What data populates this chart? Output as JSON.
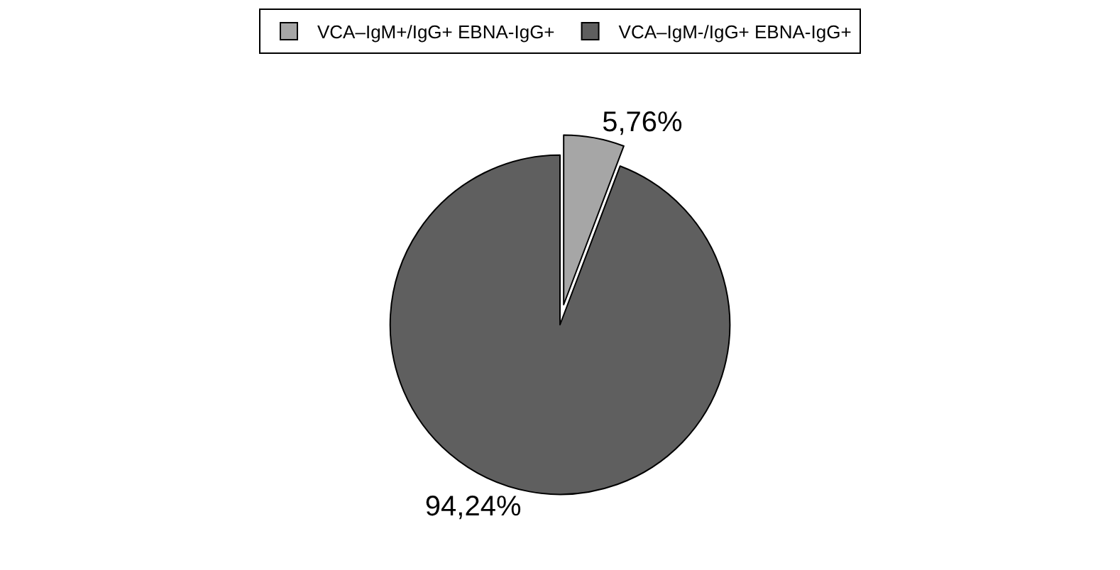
{
  "chart_data": {
    "type": "pie",
    "categories": [
      "VCA–IgM+/IgG+ EBNA-IgG+",
      "VCA–IgM-/IgG+ EBNA-IgG+"
    ],
    "values": [
      5.76,
      94.24
    ],
    "colors": [
      "#a6a6a6",
      "#5f5f5f"
    ],
    "value_labels": [
      "5,76%",
      "94,24%"
    ],
    "legend": "top"
  }
}
